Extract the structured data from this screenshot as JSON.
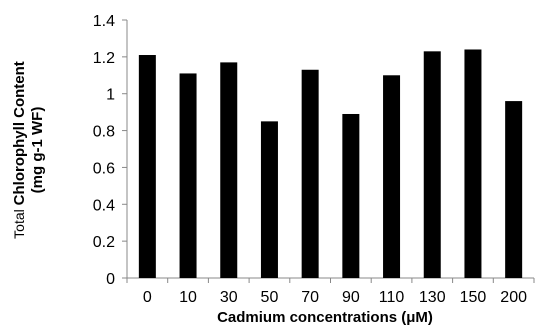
{
  "chart_data": {
    "type": "bar",
    "title": "",
    "xlabel": "Cadmium concentrations (μM)",
    "ylabel_prefix": "Total ",
    "ylabel_bold": "Chlorophyll Content",
    "ylabel_line2": "(mg g-1 WF)",
    "categories": [
      "0",
      "10",
      "30",
      "50",
      "70",
      "90",
      "110",
      "130",
      "150",
      "200"
    ],
    "values": [
      1.21,
      1.11,
      1.17,
      0.85,
      1.13,
      0.89,
      1.1,
      1.23,
      1.24,
      0.96
    ],
    "ylim": [
      0,
      1.4
    ],
    "y_ticks": [
      "0",
      "0.2",
      "0.4",
      "0.6",
      "0.8",
      "1",
      "1.2",
      "1.4"
    ],
    "grid": false,
    "bar_color": "#000000"
  }
}
